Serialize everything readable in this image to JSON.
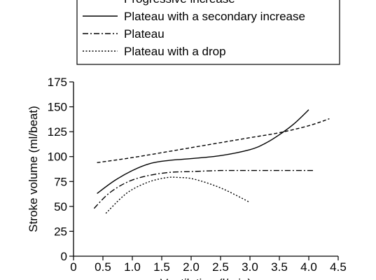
{
  "chart_data": {
    "type": "line",
    "title": "",
    "xlabel": "Ventilation (l/min)",
    "ylabel": "Stroke volume (ml/beat)",
    "xlim": [
      0,
      4.5
    ],
    "ylim": [
      0,
      175
    ],
    "x_ticks": [
      "0",
      "0.5",
      "1.0",
      "1.5",
      "2.0",
      "2.5",
      "3.0",
      "3.5",
      "4.0",
      "4.5"
    ],
    "y_ticks": [
      "0",
      "25",
      "50",
      "75",
      "100",
      "125",
      "150",
      "175"
    ],
    "grid": false,
    "legend_position": "top",
    "series": [
      {
        "name": "Progressive increase",
        "style": "dashed",
        "points": [
          [
            0.4,
            94
          ],
          [
            1.0,
            99
          ],
          [
            2.0,
            109
          ],
          [
            3.0,
            119
          ],
          [
            3.5,
            124
          ],
          [
            4.0,
            131
          ],
          [
            4.35,
            138
          ]
        ]
      },
      {
        "name": "Plateau with a secondary increase",
        "style": "solid",
        "points": [
          [
            0.4,
            63
          ],
          [
            0.7,
            76
          ],
          [
            1.0,
            86
          ],
          [
            1.3,
            93
          ],
          [
            1.6,
            96
          ],
          [
            2.0,
            98
          ],
          [
            2.5,
            101
          ],
          [
            3.0,
            107
          ],
          [
            3.25,
            113
          ],
          [
            3.5,
            122
          ],
          [
            3.75,
            133
          ],
          [
            4.0,
            147
          ]
        ]
      },
      {
        "name": "Plateau",
        "style": "dash-dot",
        "points": [
          [
            0.35,
            48
          ],
          [
            0.6,
            63
          ],
          [
            0.9,
            74
          ],
          [
            1.2,
            80
          ],
          [
            1.6,
            84
          ],
          [
            2.0,
            85
          ],
          [
            2.5,
            86
          ],
          [
            3.0,
            86
          ],
          [
            3.5,
            86
          ],
          [
            4.1,
            86
          ]
        ]
      },
      {
        "name": "Plateau with a drop",
        "style": "dotted",
        "points": [
          [
            0.55,
            43
          ],
          [
            0.8,
            58
          ],
          [
            1.0,
            67
          ],
          [
            1.3,
            75
          ],
          [
            1.6,
            79
          ],
          [
            1.8,
            79
          ],
          [
            2.0,
            78
          ],
          [
            2.3,
            73
          ],
          [
            2.6,
            66
          ],
          [
            3.0,
            54
          ]
        ]
      }
    ]
  }
}
